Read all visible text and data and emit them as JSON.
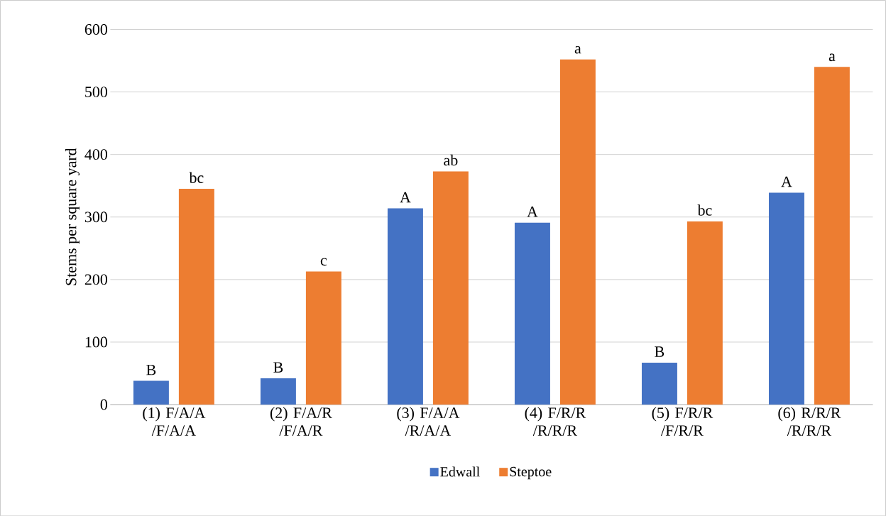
{
  "chart_data": {
    "type": "bar",
    "ylabel": "Stems per square yard",
    "categories": [
      "(1) F/A/A /F/A/A",
      "(2) F/A/R /F/A/R",
      "(3) F/A/A /R/A/A",
      "(4) F/R/R /R/R/R",
      "(5) F/R/R /F/R/R",
      "(6) R/R/R /R/R/R"
    ],
    "series": [
      {
        "name": "Edwall",
        "color": "#4472c4",
        "values": [
          38,
          42,
          314,
          291,
          67,
          339
        ]
      },
      {
        "name": "Steptoe",
        "color": "#ed7d31",
        "values": [
          345,
          213,
          373,
          552,
          293,
          540
        ]
      }
    ],
    "ylim": [
      0,
      600
    ],
    "yticks": [
      0,
      100,
      200,
      300,
      400,
      500,
      600
    ],
    "grid": "y",
    "legend": "bottom",
    "annotations": [
      "B",
      "bc",
      "B",
      "c",
      "A",
      "ab",
      "A",
      "a",
      "B",
      "bc",
      "A",
      "a"
    ]
  }
}
